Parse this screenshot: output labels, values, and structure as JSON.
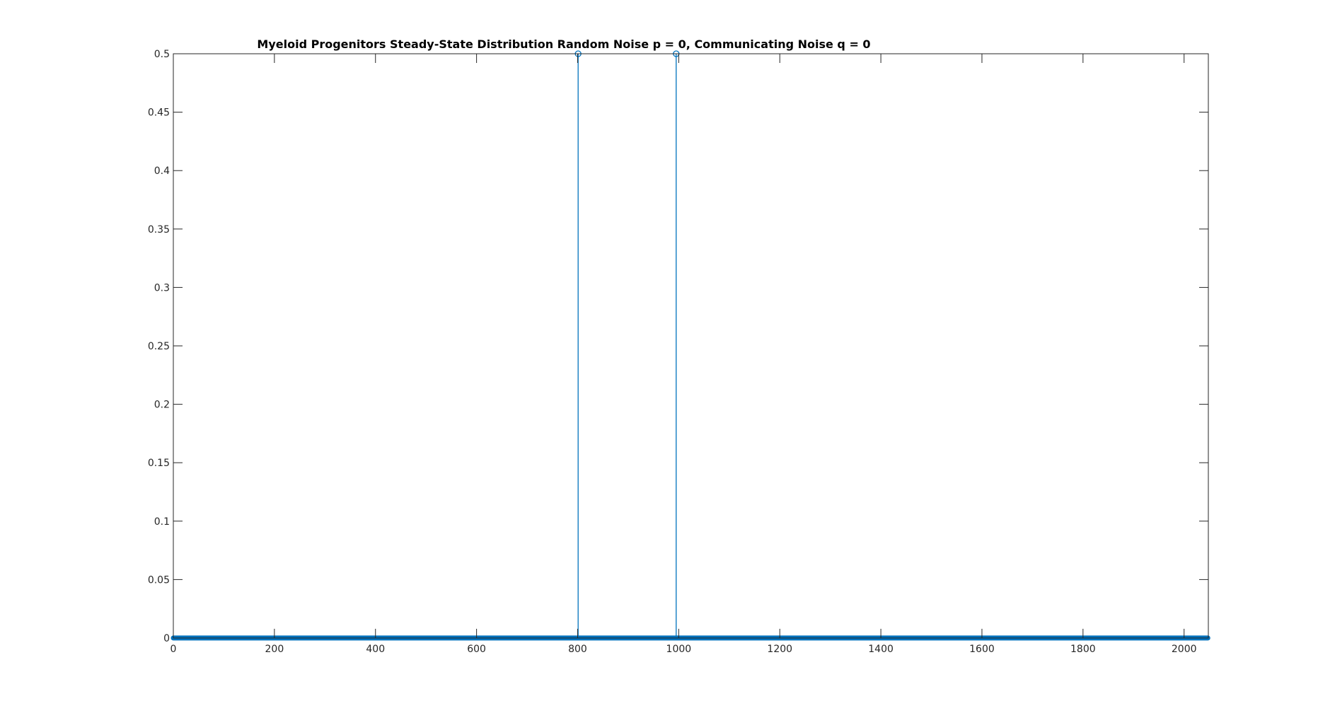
{
  "chart_data": {
    "type": "stem",
    "title": "Myeloid Progenitors Steady-State Distribution Random Noise p = 0, Communicating Noise q = 0",
    "xlabel": "",
    "ylabel": "",
    "xlim": [
      0,
      2048
    ],
    "ylim": [
      0,
      0.5
    ],
    "xticks": [
      0,
      200,
      400,
      600,
      800,
      1000,
      1200,
      1400,
      1600,
      1800,
      2000
    ],
    "yticks": [
      0,
      0.05,
      0.1,
      0.15,
      0.2,
      0.25,
      0.3,
      0.35,
      0.4,
      0.45,
      0.5
    ],
    "xtick_labels": [
      "0",
      "200",
      "400",
      "600",
      "800",
      "1000",
      "1200",
      "1400",
      "1600",
      "1800",
      "2000"
    ],
    "ytick_labels": [
      "0",
      "0.05",
      "0.1",
      "0.15",
      "0.2",
      "0.25",
      "0.3",
      "0.35",
      "0.4",
      "0.45",
      "0.5"
    ],
    "n_states": 2048,
    "baseline_value": 0,
    "series": [
      {
        "points": [
          {
            "x": 801,
            "y": 0.5
          },
          {
            "x": 995,
            "y": 0.5
          }
        ]
      }
    ],
    "grid": false,
    "legend": "none",
    "colors": {
      "series": "#0072BD",
      "axes": "#262626",
      "title": "#000000"
    }
  }
}
